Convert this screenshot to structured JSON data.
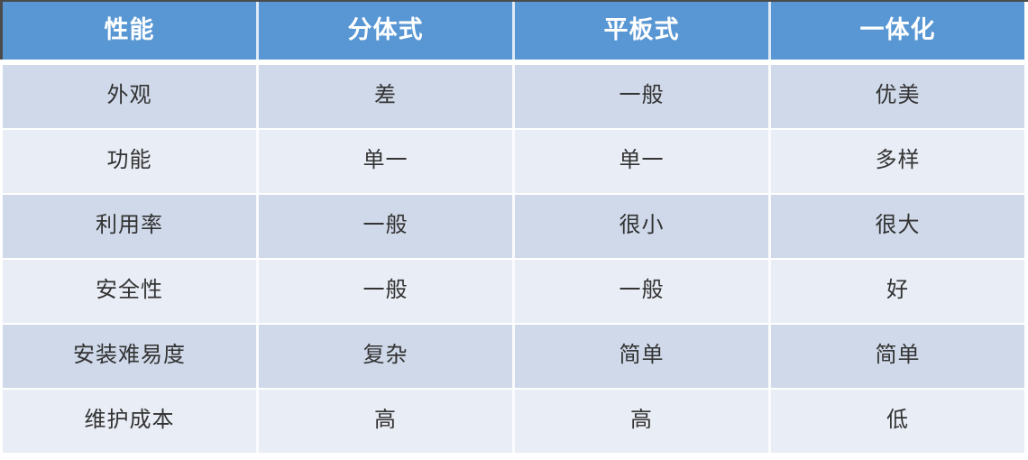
{
  "table": {
    "columns": [
      "性能",
      "分体式",
      "平板式",
      "一体化"
    ],
    "rows": [
      [
        "外观",
        "差",
        "一般",
        "优美"
      ],
      [
        "功能",
        "单一",
        "单一",
        "多样"
      ],
      [
        "利用率",
        "一般",
        "很小",
        "很大"
      ],
      [
        "安全性",
        "一般",
        "一般",
        "好"
      ],
      [
        "安装难易度",
        "复杂",
        "简单",
        "简单"
      ],
      [
        "维护成本",
        "高",
        "高",
        "低"
      ]
    ]
  },
  "colors": {
    "header_bg": "#5897d3",
    "header_text": "#ffffff",
    "band_dark": "#cfd9e9",
    "band_light": "#e9edf5",
    "body_text": "#333333",
    "outer_border": "#4b4b4b",
    "separator": "#ffffff"
  },
  "chart_data": {
    "type": "table",
    "title": "",
    "columns": [
      "性能",
      "分体式",
      "平板式",
      "一体化"
    ],
    "rows": [
      [
        "外观",
        "差",
        "一般",
        "优美"
      ],
      [
        "功能",
        "单一",
        "单一",
        "多样"
      ],
      [
        "利用率",
        "一般",
        "很小",
        "很大"
      ],
      [
        "安全性",
        "一般",
        "一般",
        "好"
      ],
      [
        "安装难易度",
        "复杂",
        "简单",
        "简单"
      ],
      [
        "维护成本",
        "高",
        "高",
        "低"
      ]
    ],
    "layout_hints": {
      "header_fill": "#5897d3",
      "banded_rows": true,
      "band_colors": [
        "#cfd9e9",
        "#e9edf5"
      ],
      "text_align": "center"
    }
  }
}
